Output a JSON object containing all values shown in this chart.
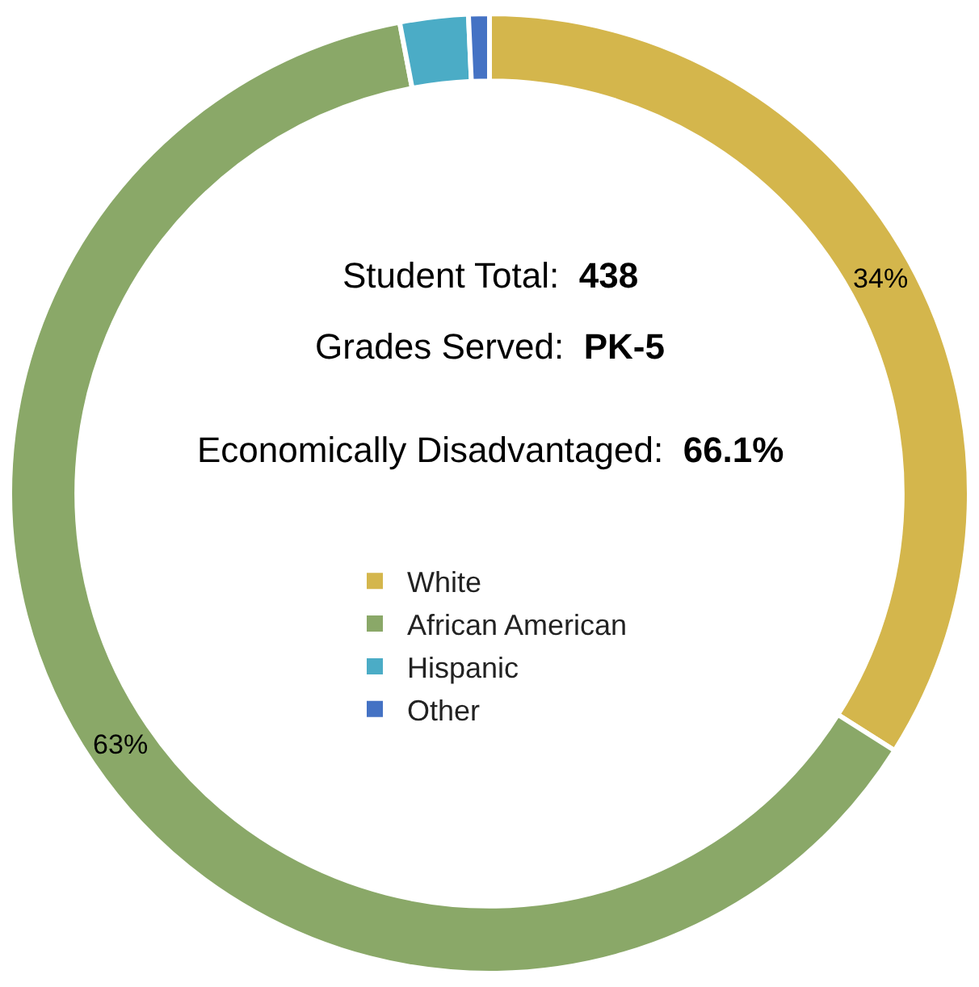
{
  "chart_data": {
    "type": "donut",
    "categories": [
      "White",
      "African American",
      "Hispanic",
      "Other"
    ],
    "values": [
      34,
      63,
      2.3,
      0.7
    ],
    "colors": [
      "#d4b64c",
      "#8aa868",
      "#4bacc6",
      "#4472c4"
    ],
    "value_labels": [
      "34%",
      "63%",
      null,
      null
    ],
    "annotations": [
      "Student Total:",
      "438",
      "Grades Served:",
      "PK-5",
      "Economically Disadvantaged:",
      "66.1%"
    ],
    "legend": "center"
  }
}
